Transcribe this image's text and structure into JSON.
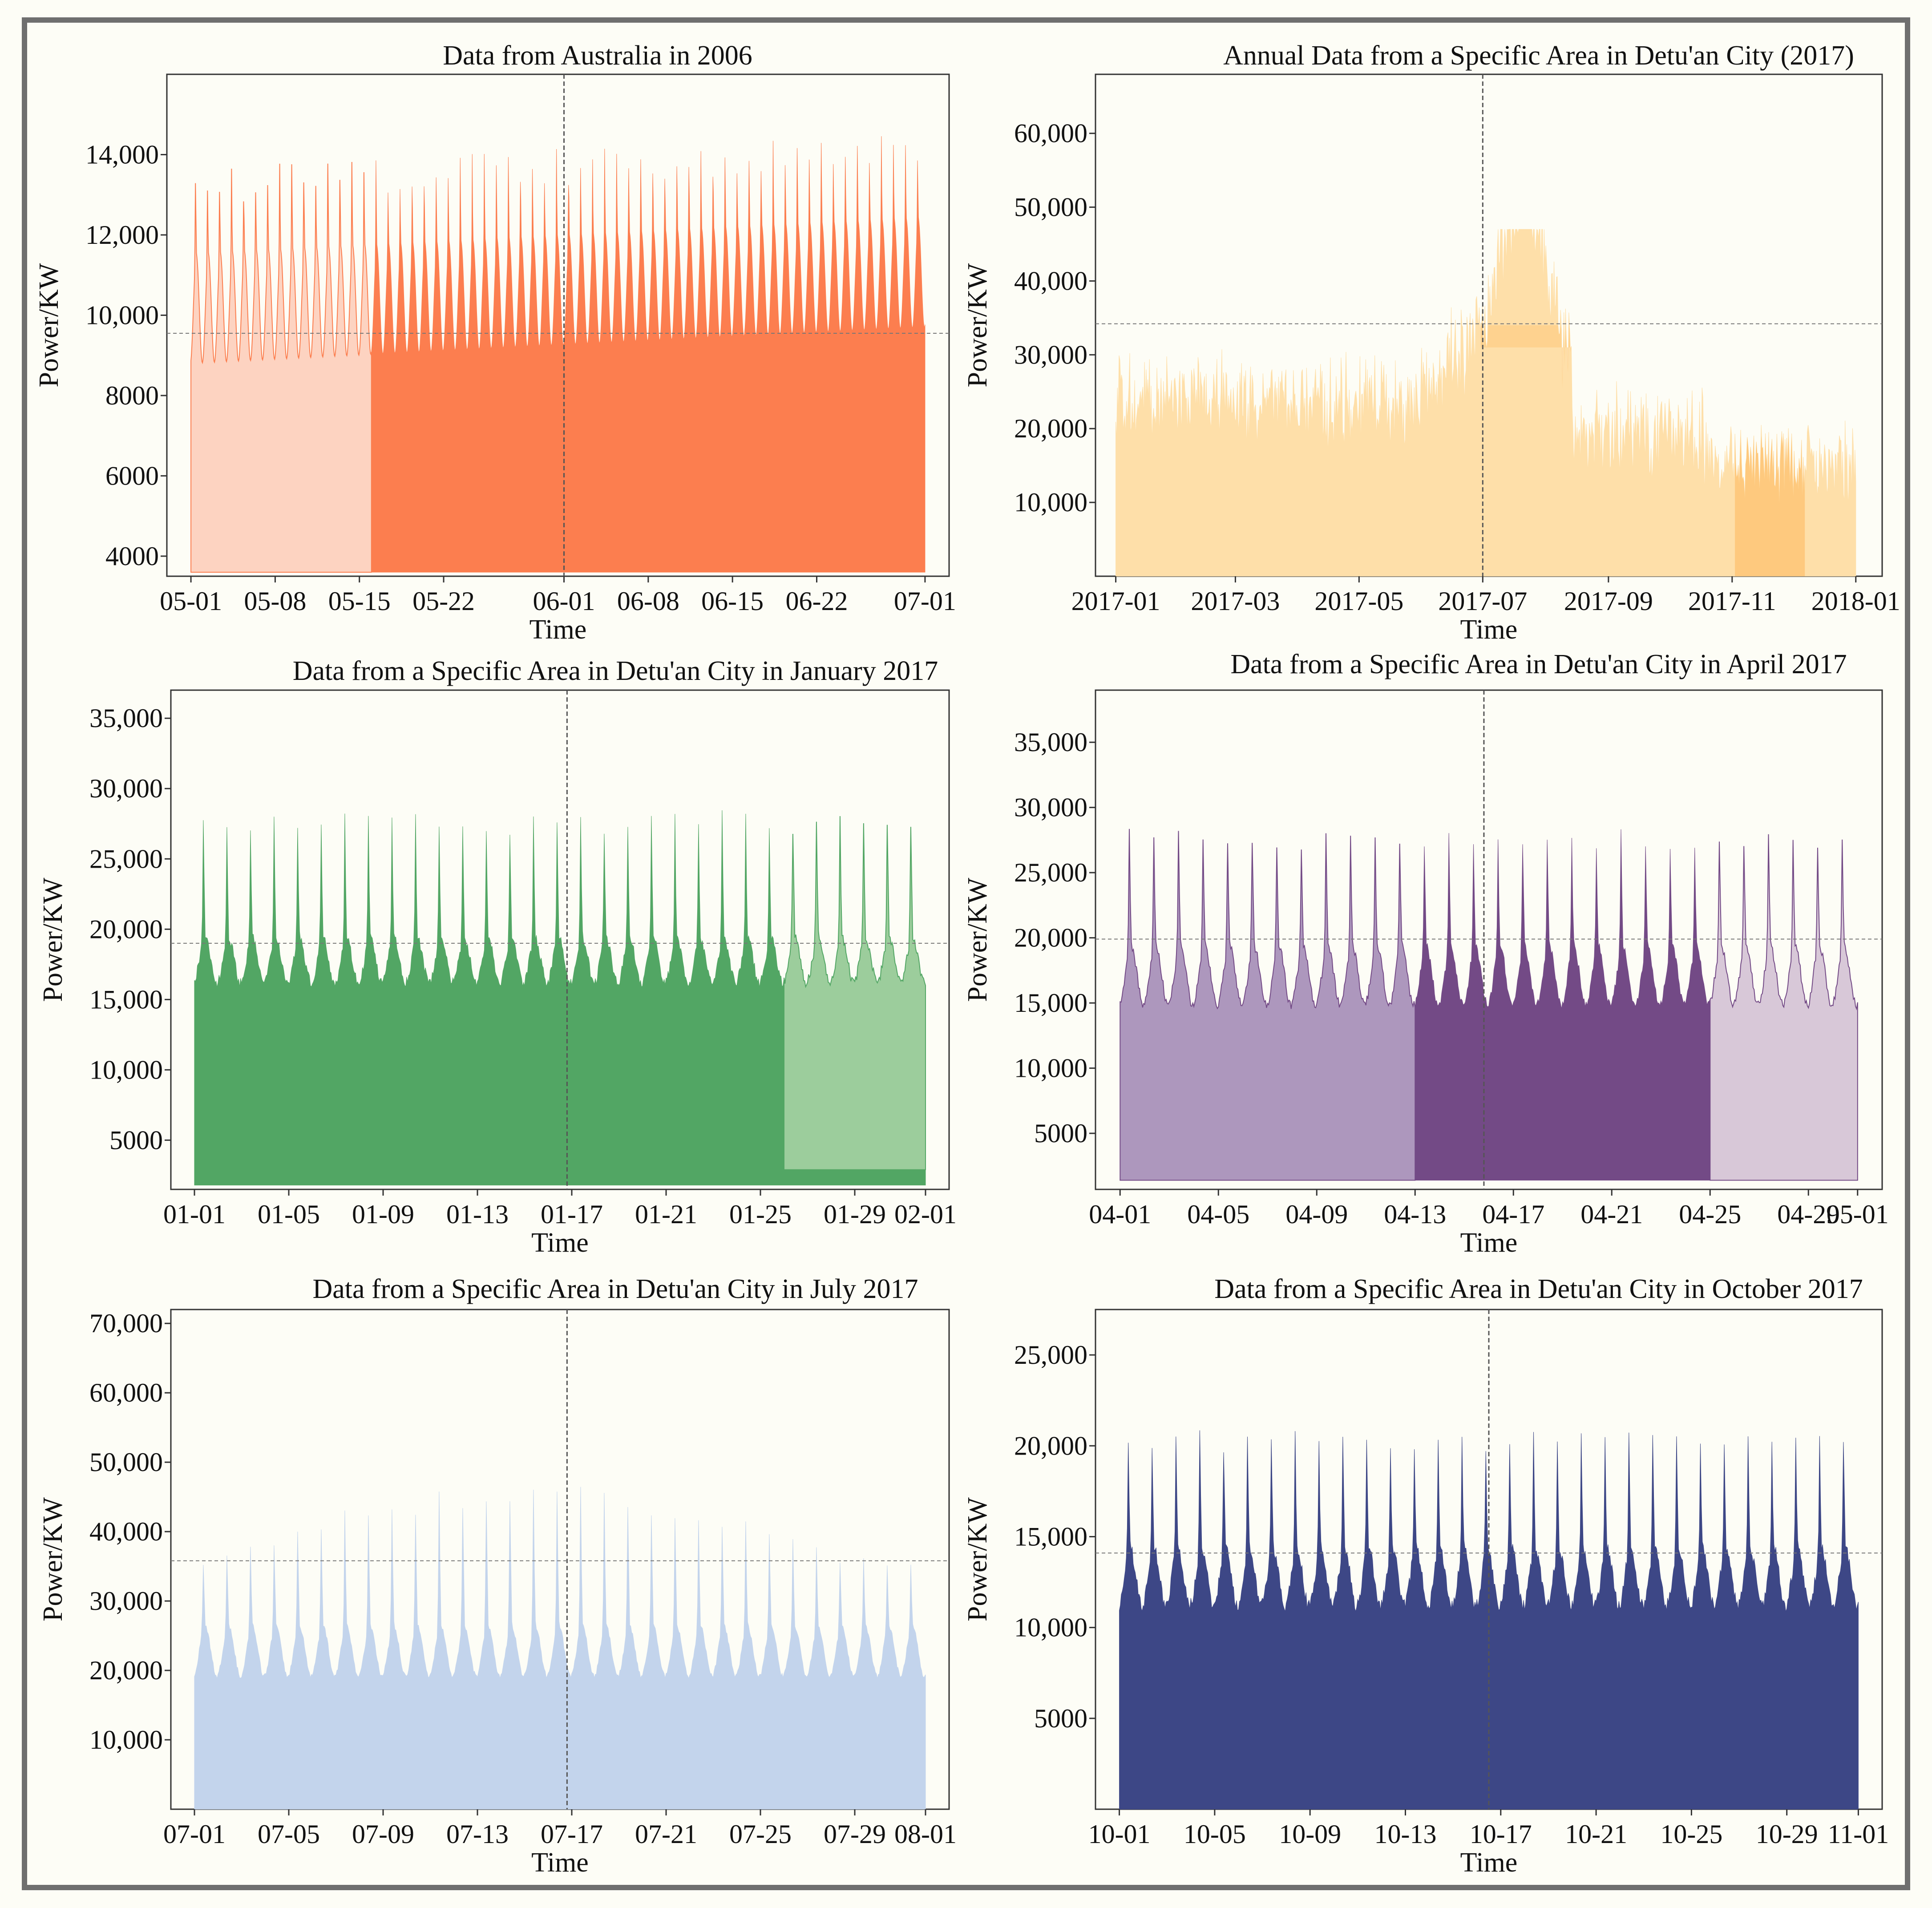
{
  "chart_data": [
    {
      "type": "area",
      "title": "Data from Australia in 2006",
      "xlabel": "Time",
      "ylabel": "Power/KW",
      "ylim": [
        3500,
        16000
      ],
      "yticks": [
        4000,
        6000,
        8000,
        10000,
        12000,
        14000
      ],
      "ytick_labels": [
        "4000",
        "6000",
        "8000",
        "10,000",
        "12,000",
        "14,000"
      ],
      "x_range": [
        -2,
        63
      ],
      "xticks": [
        0,
        7,
        14,
        21,
        31,
        38,
        45,
        52,
        61
      ],
      "xtick_labels": [
        "05-01",
        "05-08",
        "05-15",
        "05-22",
        "06-01",
        "06-08",
        "06-15",
        "06-22",
        "07-01"
      ],
      "x_start": 0,
      "x_end": 61,
      "x_split": 31,
      "hline": 9550,
      "series": [
        {
          "name": "Power",
          "color": "#fc7e4f",
          "base": 3600,
          "period_days": 1,
          "min": 8500,
          "max": 11500,
          "trend_end": 12500,
          "spike": 2400,
          "light_until": 15,
          "light_color": "#fdd3c1"
        }
      ]
    },
    {
      "type": "area",
      "title": "Annual Data from a Specific Area in Detu'an City (2017)",
      "xlabel": "Time",
      "ylabel": "Power/KW",
      "ylim": [
        0,
        68000
      ],
      "yticks": [
        10000,
        20000,
        30000,
        40000,
        50000,
        60000
      ],
      "ytick_labels": [
        "10,000",
        "20,000",
        "30,000",
        "40,000",
        "50,000",
        "60,000"
      ],
      "x_range": [
        -10,
        378
      ],
      "xticks": [
        0,
        59,
        120,
        181,
        243,
        304,
        365
      ],
      "xtick_labels": [
        "2017-01",
        "2017-03",
        "2017-05",
        "2017-07",
        "2017-09",
        "2017-11",
        "2018-01"
      ],
      "x_start": 0,
      "x_end": 365,
      "x_split": 181,
      "hline": 34200,
      "series": [
        {
          "name": "Power",
          "color": "#fedfa9",
          "accent_color": "#fec97e",
          "annual": true
        }
      ]
    },
    {
      "type": "area",
      "title": "Data from a Specific Area in Detu'an City in January 2017",
      "xlabel": "Time",
      "ylabel": "Power/KW",
      "ylim": [
        1500,
        37000
      ],
      "yticks": [
        5000,
        10000,
        15000,
        20000,
        25000,
        30000,
        35000
      ],
      "ytick_labels": [
        "5000",
        "10,000",
        "15,000",
        "20,000",
        "25,000",
        "30,000",
        "35,000"
      ],
      "x_range": [
        -1,
        32
      ],
      "xticks": [
        0,
        4,
        8,
        12,
        16,
        20,
        24,
        28,
        31
      ],
      "xtick_labels": [
        "01-01",
        "01-05",
        "01-09",
        "01-13",
        "01-17",
        "01-21",
        "01-25",
        "01-29",
        "02-01"
      ],
      "x_start": 0,
      "x_end": 31,
      "x_split": 15.8,
      "hline": 19000,
      "series": [
        {
          "name": "Power",
          "color": "#52a664",
          "base": 1800,
          "min": 15500,
          "max": 19000,
          "peak": 28000,
          "light_from": 25,
          "light_color": "#9ccd9c",
          "light_base": 2900
        }
      ]
    },
    {
      "type": "area",
      "title": "Data from a Specific Area in Detu'an City in April 2017",
      "xlabel": "Time",
      "ylabel": "Power/KW",
      "ylim": [
        700,
        39000
      ],
      "yticks": [
        5000,
        10000,
        15000,
        20000,
        25000,
        30000,
        35000
      ],
      "ytick_labels": [
        "5000",
        "10,000",
        "15,000",
        "20,000",
        "25,000",
        "30,000",
        "35,000"
      ],
      "x_range": [
        -1,
        31
      ],
      "xticks": [
        0,
        4,
        8,
        12,
        16,
        20,
        24,
        28,
        30
      ],
      "xtick_labels": [
        "04-01",
        "04-05",
        "04-09",
        "04-13",
        "04-17",
        "04-21",
        "04-25",
        "04-29",
        "05-01"
      ],
      "x_start": 0,
      "x_end": 30,
      "x_split": 14.8,
      "hline": 19900,
      "series": [
        {
          "name": "Power",
          "color": "#734a86",
          "base": 1400,
          "min": 14000,
          "max": 19000,
          "peak": 28000,
          "light_until": 12,
          "light_color": "#ad97bd",
          "light_from": 24,
          "light_color2": "#d8c8d8"
        }
      ]
    },
    {
      "type": "area",
      "title": "Data from a Specific Area in Detu'an City in July 2017",
      "xlabel": "Time",
      "ylabel": "Power/KW",
      "ylim": [
        0,
        72000
      ],
      "yticks": [
        10000,
        20000,
        30000,
        40000,
        50000,
        60000,
        70000
      ],
      "ytick_labels": [
        "10,000",
        "20,000",
        "30,000",
        "40,000",
        "50,000",
        "60,000",
        "70,000"
      ],
      "x_range": [
        -1,
        32
      ],
      "xticks": [
        0,
        4,
        8,
        12,
        16,
        20,
        24,
        28,
        31
      ],
      "xtick_labels": [
        "07-01",
        "07-05",
        "07-09",
        "07-13",
        "07-17",
        "07-21",
        "07-25",
        "07-29",
        "08-01"
      ],
      "x_start": 0,
      "x_end": 31,
      "x_split": 15.8,
      "hline": 35800,
      "series": [
        {
          "name": "Power",
          "color": "#c3d4ec",
          "base": 0,
          "min": 18000,
          "max": 26000,
          "peak": 36000,
          "trend_peak": 47000
        }
      ]
    },
    {
      "type": "area",
      "title": "Data from a Specific Area in Detu'an City in October 2017",
      "xlabel": "Time",
      "ylabel": "Power/KW",
      "ylim": [
        0,
        27500
      ],
      "yticks": [
        5000,
        10000,
        15000,
        20000,
        25000
      ],
      "ytick_labels": [
        "5000",
        "10,000",
        "15,000",
        "20,000",
        "25,000"
      ],
      "x_range": [
        -1,
        32
      ],
      "xticks": [
        0,
        4,
        8,
        12,
        16,
        20,
        24,
        28,
        31
      ],
      "xtick_labels": [
        "10-01",
        "10-05",
        "10-09",
        "10-13",
        "10-17",
        "10-21",
        "10-25",
        "10-29",
        "11-01"
      ],
      "x_start": 0,
      "x_end": 31,
      "x_split": 15.5,
      "hline": 14100,
      "series": [
        {
          "name": "Power",
          "color": "#3d4786",
          "base": 0,
          "min": 10500,
          "max": 14000,
          "peak": 20500
        }
      ]
    }
  ]
}
